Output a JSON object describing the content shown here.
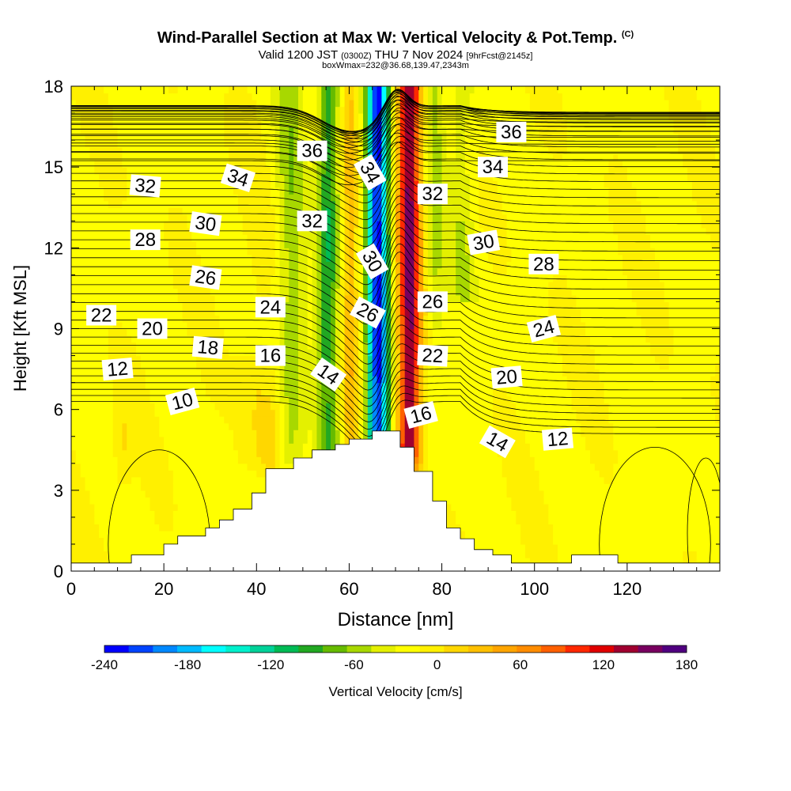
{
  "header": {
    "title": "Wind-Parallel Section at Max W: Vertical Velocity & Pot.Temp.",
    "copyright": "(C)",
    "valid_prefix": "Valid 1200 JST",
    "valid_utc": "(0300Z)",
    "valid_date": "THU 7 Nov 2024",
    "valid_fcst": "[9hrFcst@2145z]",
    "box_info": "boxWmax=232@36.68,139.47,2343m"
  },
  "colors": {
    "terrain": "#ffffff",
    "contour": "#000000",
    "background": "#ffffff"
  },
  "chart_data": {
    "type": "heatmap",
    "xlabel": "Distance [nm]",
    "ylabel": "Height [Kft MSL]",
    "xlim": [
      0,
      140
    ],
    "ylim": [
      0,
      18
    ],
    "x_ticks": [
      "0",
      "20",
      "40",
      "60",
      "80",
      "100",
      "120"
    ],
    "y_ticks": [
      "0",
      "3",
      "6",
      "9",
      "12",
      "15",
      "18"
    ],
    "colorbar": {
      "label": "Vertical Velocity [cm/s]",
      "min": -240,
      "max": 180,
      "step": 20,
      "tick_labels": [
        "-240",
        "-180",
        "-120",
        "-60",
        "0",
        "60",
        "120",
        "180"
      ],
      "colors": [
        "#0000ff",
        "#0044ff",
        "#0088ff",
        "#00bbff",
        "#00ffff",
        "#00f0cc",
        "#00d299",
        "#00bb55",
        "#22a822",
        "#66bb00",
        "#a8d800",
        "#e4f000",
        "#ffff00",
        "#fff000",
        "#ffd700",
        "#ffc000",
        "#ffa500",
        "#ff8c00",
        "#ff6000",
        "#ff2800",
        "#e00000",
        "#a00030",
        "#780060",
        "#500080"
      ]
    },
    "theta_contour_labels": [
      {
        "value": "36",
        "x": 52,
        "y": 15.6,
        "rot": 0
      },
      {
        "value": "36",
        "x": 95,
        "y": 16.3,
        "rot": 0
      },
      {
        "value": "34",
        "x": 36,
        "y": 14.6,
        "rot": 18
      },
      {
        "value": "34",
        "x": 64.5,
        "y": 14.8,
        "rot": 60
      },
      {
        "value": "34",
        "x": 91,
        "y": 15.0,
        "rot": 0
      },
      {
        "value": "32",
        "x": 16,
        "y": 14.3,
        "rot": 5
      },
      {
        "value": "32",
        "x": 52,
        "y": 13.0,
        "rot": 0
      },
      {
        "value": "32",
        "x": 78,
        "y": 14.0,
        "rot": 0
      },
      {
        "value": "30",
        "x": 29,
        "y": 12.9,
        "rot": 8
      },
      {
        "value": "30",
        "x": 65,
        "y": 11.5,
        "rot": 60
      },
      {
        "value": "30",
        "x": 89,
        "y": 12.2,
        "rot": -10
      },
      {
        "value": "28",
        "x": 16,
        "y": 12.3,
        "rot": 0
      },
      {
        "value": "28",
        "x": 102,
        "y": 11.4,
        "rot": 0
      },
      {
        "value": "26",
        "x": 29,
        "y": 10.9,
        "rot": 8
      },
      {
        "value": "26",
        "x": 64,
        "y": 9.6,
        "rot": 28
      },
      {
        "value": "26",
        "x": 78,
        "y": 10.0,
        "rot": 0
      },
      {
        "value": "24",
        "x": 43,
        "y": 9.8,
        "rot": 0
      },
      {
        "value": "24",
        "x": 102,
        "y": 9.0,
        "rot": -15
      },
      {
        "value": "22",
        "x": 6.5,
        "y": 9.5,
        "rot": 0
      },
      {
        "value": "22",
        "x": 78,
        "y": 8.0,
        "rot": 3
      },
      {
        "value": "20",
        "x": 17.5,
        "y": 9.0,
        "rot": 0
      },
      {
        "value": "20",
        "x": 94,
        "y": 7.2,
        "rot": -5
      },
      {
        "value": "18",
        "x": 29.5,
        "y": 8.3,
        "rot": 5
      },
      {
        "value": "16",
        "x": 43,
        "y": 8.0,
        "rot": 0
      },
      {
        "value": "16",
        "x": 75.5,
        "y": 5.8,
        "rot": -15
      },
      {
        "value": "14",
        "x": 55.5,
        "y": 7.3,
        "rot": 35
      },
      {
        "value": "14",
        "x": 92,
        "y": 4.8,
        "rot": 30
      },
      {
        "value": "12",
        "x": 10,
        "y": 7.5,
        "rot": -5
      },
      {
        "value": "12",
        "x": 105,
        "y": 4.9,
        "rot": -5
      },
      {
        "value": "10",
        "x": 24,
        "y": 6.3,
        "rot": -15
      }
    ],
    "terrain_profile": [
      [
        0,
        0.3
      ],
      [
        13,
        0.3
      ],
      [
        13,
        0.6
      ],
      [
        20,
        0.6
      ],
      [
        20,
        1.0
      ],
      [
        23,
        1.0
      ],
      [
        23,
        1.3
      ],
      [
        29,
        1.3
      ],
      [
        29,
        1.6
      ],
      [
        32,
        1.6
      ],
      [
        32,
        1.9
      ],
      [
        35,
        1.9
      ],
      [
        35,
        2.3
      ],
      [
        39,
        2.3
      ],
      [
        39,
        2.9
      ],
      [
        42,
        2.9
      ],
      [
        42,
        3.8
      ],
      [
        48,
        3.8
      ],
      [
        48,
        4.2
      ],
      [
        52,
        4.2
      ],
      [
        52,
        4.5
      ],
      [
        57,
        4.5
      ],
      [
        57,
        4.7
      ],
      [
        60,
        4.7
      ],
      [
        60,
        4.9
      ],
      [
        65,
        4.9
      ],
      [
        65,
        5.2
      ],
      [
        71,
        5.2
      ],
      [
        71,
        4.6
      ],
      [
        74,
        4.6
      ],
      [
        74,
        3.7
      ],
      [
        78,
        3.7
      ],
      [
        78,
        2.6
      ],
      [
        81,
        2.6
      ],
      [
        81,
        1.6
      ],
      [
        84,
        1.6
      ],
      [
        84,
        1.2
      ],
      [
        87,
        1.2
      ],
      [
        87,
        0.8
      ],
      [
        91,
        0.8
      ],
      [
        91,
        0.6
      ],
      [
        95,
        0.6
      ],
      [
        95,
        0.3
      ],
      [
        108,
        0.3
      ],
      [
        108,
        0.6
      ],
      [
        118,
        0.6
      ],
      [
        118,
        0.3
      ],
      [
        140,
        0.3
      ]
    ]
  }
}
